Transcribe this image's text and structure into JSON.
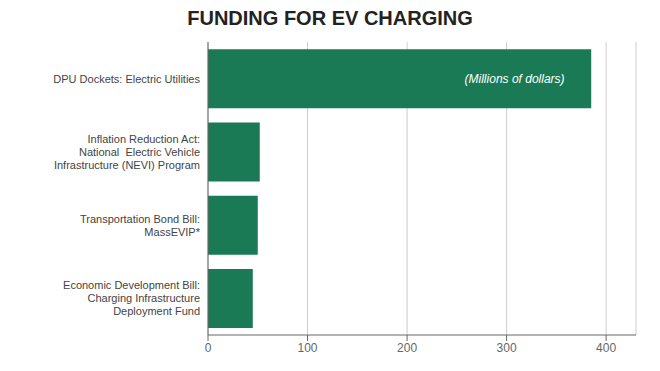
{
  "chart_data": {
    "type": "bar",
    "orientation": "horizontal",
    "title": "FUNDING FOR EV CHARGING",
    "categories": [
      "Economic Development Bill:\nCharging Infrastructure\nDeployment Fund",
      "Transportation Bond Bill:\nMassEVIP*",
      "Inflation Reduction Act:\nNational  Electric Vehicle\nInfrastructure (NEVI) Program",
      "DPU Dockets: Electric Utilities"
    ],
    "values": [
      45,
      50,
      52,
      385
    ],
    "color": "#1a7a55",
    "xlim": [
      0,
      430
    ],
    "xticks": [
      0,
      100,
      200,
      300,
      400
    ],
    "grid": true,
    "annotation": "(Millions of dollars)"
  }
}
